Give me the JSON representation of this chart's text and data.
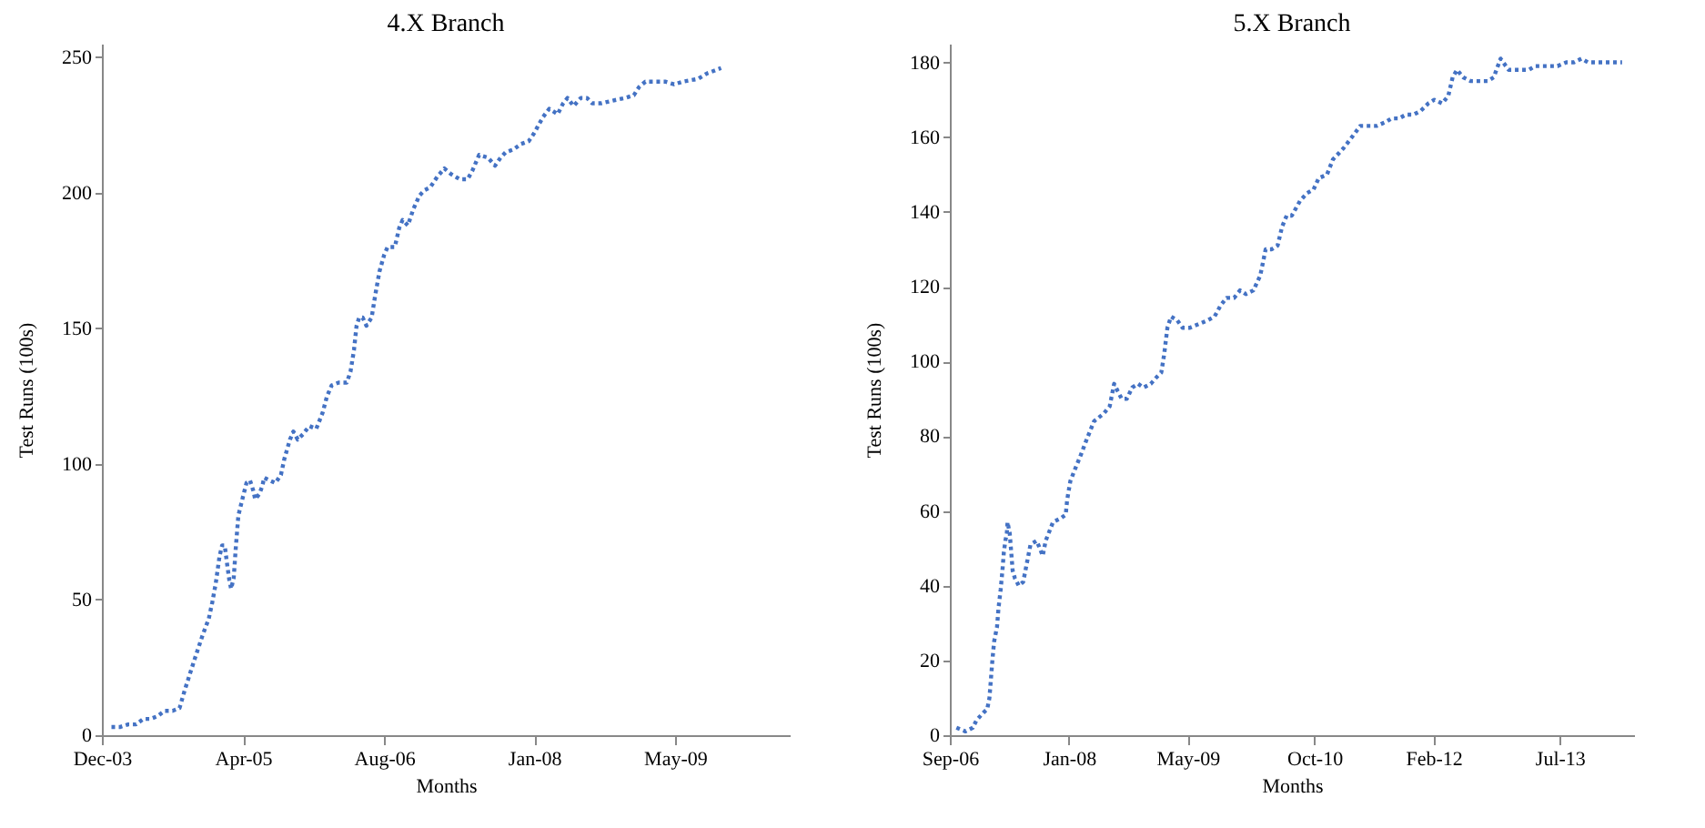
{
  "chart_data": [
    {
      "type": "line",
      "title": "4.X  Branch",
      "xlabel": "Months",
      "ylabel": "Test Runs (100s)",
      "xlim": [
        "2003-12",
        "2010-06"
      ],
      "xticks": [
        {
          "value": "2003-12",
          "label": "Dec-03"
        },
        {
          "value": "2005-04",
          "label": "Apr-05"
        },
        {
          "value": "2006-08",
          "label": "Aug-06"
        },
        {
          "value": "2008-01",
          "label": "Jan-08"
        },
        {
          "value": "2009-05",
          "label": "May-09"
        }
      ],
      "ylim": [
        0,
        255
      ],
      "yticks": [
        0,
        50,
        100,
        150,
        200,
        250
      ],
      "grid": false,
      "marker": "none",
      "line_style": "dotted",
      "series": [
        {
          "color": "#4472c4",
          "x": [
            "2004-01-03",
            "2004-02-01",
            "2004-03-01",
            "2004-03-28",
            "2004-04-22",
            "2004-05-16",
            "2004-06-10",
            "2004-07-04",
            "2004-08-01",
            "2004-08-25",
            "2004-09-13",
            "2004-10-01",
            "2004-10-19",
            "2004-11-13",
            "2004-12-04",
            "2004-12-16",
            "2004-12-28",
            "2005-01-10",
            "2005-01-19",
            "2005-01-28",
            "2005-02-04",
            "2005-02-13",
            "2005-02-19",
            "2005-02-28",
            "2005-03-07",
            "2005-03-16",
            "2005-04-01",
            "2005-04-13",
            "2005-04-25",
            "2005-05-07",
            "2005-05-13",
            "2005-05-28",
            "2005-06-07",
            "2005-06-13",
            "2005-07-01",
            "2005-07-22",
            "2005-08-10",
            "2005-08-22",
            "2005-09-10",
            "2005-09-22",
            "2005-10-07",
            "2005-10-25",
            "2005-11-16",
            "2005-12-10",
            "2006-01-01",
            "2006-01-16",
            "2006-02-01",
            "2006-02-25",
            "2006-03-25",
            "2006-04-07",
            "2006-04-19",
            "2006-04-28",
            "2006-05-07",
            "2006-05-19",
            "2006-06-01",
            "2006-06-19",
            "2006-07-01",
            "2006-07-16",
            "2006-08-01",
            "2006-08-13",
            "2006-09-07",
            "2006-09-22",
            "2006-10-04",
            "2006-10-22",
            "2006-11-10",
            "2006-12-01",
            "2006-12-19",
            "2007-01-07",
            "2007-02-01",
            "2007-02-25",
            "2007-03-19",
            "2007-04-19",
            "2007-05-16",
            "2007-06-01",
            "2007-06-25",
            "2007-07-25",
            "2007-08-19",
            "2007-09-07",
            "2007-09-25",
            "2007-10-22",
            "2007-11-16",
            "2007-12-13",
            "2008-01-01",
            "2008-01-16",
            "2008-02-01",
            "2008-02-22",
            "2008-03-22",
            "2008-04-10",
            "2008-04-25",
            "2008-05-16",
            "2008-06-10",
            "2008-07-01",
            "2008-07-19",
            "2008-08-19",
            "2008-09-28",
            "2008-11-10",
            "2008-12-10",
            "2008-12-28",
            "2009-01-19",
            "2009-02-28",
            "2009-03-28",
            "2009-04-28",
            "2009-05-28",
            "2009-07-19",
            "2009-08-19",
            "2009-09-13",
            "2009-10-07"
          ],
          "values": [
            3,
            3,
            4,
            4,
            6,
            6,
            7,
            9,
            9,
            10,
            17,
            23,
            29,
            37,
            43,
            49,
            56,
            66,
            70,
            70,
            64,
            57,
            54,
            58,
            69,
            81,
            88,
            93,
            94,
            90,
            87,
            89,
            92,
            95,
            94,
            93,
            96,
            102,
            109,
            112,
            109,
            111,
            114,
            113,
            119,
            125,
            129,
            130,
            130,
            134,
            142,
            151,
            154,
            154,
            151,
            154,
            162,
            171,
            177,
            180,
            180,
            187,
            190,
            188,
            194,
            199,
            201,
            202,
            206,
            209,
            207,
            205,
            205,
            208,
            214,
            213,
            210,
            213,
            215,
            216,
            218,
            219,
            222,
            225,
            228,
            231,
            229,
            233,
            235,
            232,
            235,
            235,
            233,
            233,
            234,
            235,
            236,
            239,
            241,
            241,
            241,
            240,
            241,
            242,
            244,
            245,
            246
          ]
        }
      ]
    },
    {
      "type": "line",
      "title": "5.X Branch",
      "xlabel": "Months",
      "ylabel": "Test Runs (100s)",
      "xlim": [
        "2006-09",
        "2014-05"
      ],
      "xticks": [
        {
          "value": "2006-09",
          "label": "Sep-06"
        },
        {
          "value": "2008-01",
          "label": "Jan-08"
        },
        {
          "value": "2009-05",
          "label": "May-09"
        },
        {
          "value": "2010-10",
          "label": "Oct-10"
        },
        {
          "value": "2012-02",
          "label": "Feb-12"
        },
        {
          "value": "2013-07",
          "label": "Jul-13"
        }
      ],
      "ylim": [
        0,
        185
      ],
      "yticks": [
        0,
        20,
        40,
        60,
        80,
        100,
        120,
        140,
        160,
        180
      ],
      "grid": false,
      "marker": "none",
      "line_style": "dotted",
      "series": [
        {
          "color": "#4472c4",
          "x": [
            "2006-09-28",
            "2006-11-04",
            "2006-12-04",
            "2006-12-19",
            "2007-01-16",
            "2007-02-01",
            "2007-02-10",
            "2007-02-16",
            "2007-02-22",
            "2007-03-01",
            "2007-03-13",
            "2007-03-19",
            "2007-03-28",
            "2007-04-04",
            "2007-04-10",
            "2007-04-16",
            "2007-04-22",
            "2007-04-25",
            "2007-05-04",
            "2007-05-10",
            "2007-05-16",
            "2007-05-25",
            "2007-06-10",
            "2007-06-28",
            "2007-07-13",
            "2007-07-28",
            "2007-08-22",
            "2007-09-04",
            "2007-09-16",
            "2007-09-28",
            "2007-10-10",
            "2007-10-28",
            "2007-11-28",
            "2007-12-19",
            "2007-12-25",
            "2008-01-07",
            "2008-01-25",
            "2008-02-19",
            "2008-03-13",
            "2008-04-13",
            "2008-05-22",
            "2008-06-16",
            "2008-06-28",
            "2008-07-04",
            "2008-07-19",
            "2008-08-04",
            "2008-08-25",
            "2008-09-16",
            "2008-10-10",
            "2008-11-01",
            "2008-12-01",
            "2008-12-28",
            "2009-01-13",
            "2009-01-25",
            "2009-02-07",
            "2009-02-22",
            "2009-03-19",
            "2009-04-10",
            "2009-05-10",
            "2009-06-16",
            "2009-07-22",
            "2009-08-19",
            "2009-09-13",
            "2009-10-07",
            "2009-11-07",
            "2009-12-01",
            "2009-12-25",
            "2010-01-25",
            "2010-02-22",
            "2010-03-16",
            "2010-04-10",
            "2010-05-04",
            "2010-05-22",
            "2010-06-10",
            "2010-07-01",
            "2010-08-04",
            "2010-09-01",
            "2010-09-28",
            "2010-10-19",
            "2010-11-22",
            "2010-12-16",
            "2011-01-28",
            "2011-03-04",
            "2011-04-07",
            "2011-05-07",
            "2011-06-13",
            "2011-07-19",
            "2011-08-13",
            "2011-09-13",
            "2011-10-10",
            "2011-11-10",
            "2011-12-10",
            "2012-01-10",
            "2012-02-04",
            "2012-03-07",
            "2012-04-01",
            "2012-04-19",
            "2012-05-07",
            "2012-06-01",
            "2012-07-01",
            "2012-08-04",
            "2012-09-10",
            "2012-10-04",
            "2012-11-01",
            "2012-12-04",
            "2013-01-07",
            "2013-02-25",
            "2013-03-22",
            "2013-05-04",
            "2013-06-22",
            "2013-07-28",
            "2013-08-28",
            "2013-09-28",
            "2013-10-25",
            "2014-01-01",
            "2014-03-13"
          ],
          "values": [
            2,
            1,
            2,
            4,
            6,
            7,
            10,
            15,
            20,
            25,
            29,
            34,
            39,
            44,
            49,
            52,
            54,
            57,
            54,
            49,
            44,
            42,
            40,
            41,
            46,
            51,
            52,
            50,
            48,
            52,
            54,
            57,
            58,
            59,
            63,
            68,
            71,
            75,
            79,
            84,
            86,
            88,
            92,
            94,
            92,
            90,
            90,
            93,
            94,
            93,
            94,
            96,
            97,
            102,
            109,
            112,
            111,
            109,
            109,
            110,
            111,
            112,
            115,
            117,
            117,
            119,
            118,
            119,
            123,
            130,
            130,
            131,
            136,
            139,
            139,
            143,
            145,
            146,
            149,
            150,
            154,
            157,
            160,
            163,
            163,
            163,
            164,
            165,
            165,
            166,
            166,
            167,
            169,
            170,
            169,
            171,
            176,
            178,
            176,
            175,
            175,
            175,
            176,
            181,
            178,
            178,
            178,
            179,
            179,
            179,
            180,
            180,
            181,
            180,
            180,
            180
          ]
        }
      ]
    }
  ]
}
